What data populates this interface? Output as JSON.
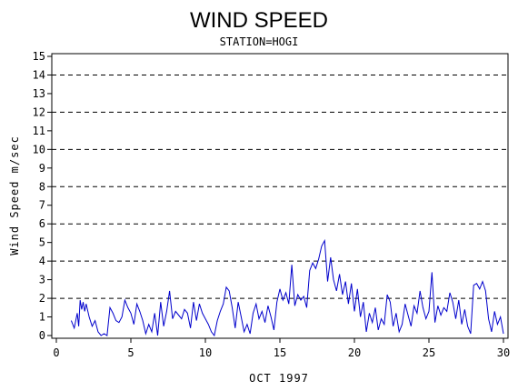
{
  "chart_data": {
    "type": "line",
    "title": "WIND SPEED",
    "subtitle": "STATION=HOGI",
    "xlabel": "OCT 1997",
    "ylabel": "Wind Speed m/sec",
    "xlim": [
      0,
      30
    ],
    "ylim": [
      0,
      15
    ],
    "x_ticks": [
      0,
      5,
      10,
      15,
      20,
      25,
      30
    ],
    "y_ticks": [
      0,
      1,
      2,
      3,
      4,
      5,
      6,
      7,
      8,
      9,
      10,
      11,
      12,
      13,
      14,
      15
    ],
    "gridlines_y": [
      2,
      4,
      6,
      8,
      10,
      12,
      14
    ],
    "grid_style": "dashed",
    "line_color": "#0000cc",
    "series": [
      {
        "x": [
          1.0,
          1.2,
          1.4,
          1.5,
          1.6,
          1.7,
          1.8,
          1.9,
          2.0,
          2.2,
          2.4,
          2.6,
          2.8,
          3.0,
          3.2,
          3.4,
          3.6,
          3.8,
          4.0,
          4.2,
          4.4,
          4.6,
          4.8,
          5.0,
          5.2,
          5.4,
          5.6,
          5.8,
          6.0,
          6.2,
          6.4,
          6.6,
          6.8,
          7.0,
          7.2,
          7.4,
          7.6,
          7.8,
          8.0,
          8.2,
          8.4,
          8.6,
          8.8,
          9.0,
          9.2,
          9.4,
          9.6,
          9.8,
          10.0,
          10.2,
          10.4,
          10.6,
          10.8,
          11.0,
          11.2,
          11.4,
          11.6,
          11.8,
          12.0,
          12.2,
          12.4,
          12.6,
          12.8,
          13.0,
          13.2,
          13.4,
          13.6,
          13.8,
          14.0,
          14.2,
          14.4,
          14.6,
          14.8,
          15.0,
          15.2,
          15.4,
          15.6,
          15.8,
          16.0,
          16.2,
          16.4,
          16.6,
          16.8,
          17.0,
          17.2,
          17.4,
          17.6,
          17.8,
          18.0,
          18.2,
          18.4,
          18.6,
          18.8,
          19.0,
          19.2,
          19.4,
          19.6,
          19.8,
          20.0,
          20.2,
          20.4,
          20.6,
          20.8,
          21.0,
          21.2,
          21.4,
          21.6,
          21.8,
          22.0,
          22.2,
          22.4,
          22.6,
          22.8,
          23.0,
          23.2,
          23.4,
          23.6,
          23.8,
          24.0,
          24.2,
          24.4,
          24.6,
          24.8,
          25.0,
          25.2,
          25.4,
          25.6,
          25.8,
          26.0,
          26.2,
          26.4,
          26.6,
          26.8,
          27.0,
          27.2,
          27.4,
          27.6,
          27.8,
          28.0,
          28.2,
          28.4,
          28.6,
          28.8,
          29.0,
          29.2,
          29.4,
          29.6,
          29.8,
          30.0
        ],
        "values": [
          0.8,
          0.4,
          1.2,
          0.5,
          1.9,
          1.4,
          1.8,
          1.3,
          1.7,
          1.0,
          0.5,
          0.8,
          0.2,
          0.0,
          0.1,
          0.0,
          1.5,
          1.2,
          0.8,
          0.7,
          1.0,
          1.9,
          1.5,
          1.2,
          0.6,
          1.7,
          1.3,
          0.8,
          0.1,
          0.6,
          0.2,
          1.2,
          0.0,
          1.8,
          0.5,
          1.3,
          2.4,
          0.9,
          1.3,
          1.1,
          0.9,
          1.4,
          1.2,
          0.4,
          1.8,
          0.8,
          1.7,
          1.2,
          0.9,
          0.6,
          0.2,
          0.0,
          0.8,
          1.3,
          1.7,
          2.6,
          2.4,
          1.5,
          0.4,
          1.8,
          1.0,
          0.2,
          0.6,
          0.1,
          1.2,
          1.7,
          0.9,
          1.3,
          0.7,
          1.6,
          1.0,
          0.3,
          1.8,
          2.5,
          1.9,
          2.3,
          1.7,
          3.8,
          1.6,
          2.2,
          1.9,
          2.1,
          1.5,
          3.5,
          3.9,
          3.6,
          4.1,
          4.8,
          5.1,
          2.9,
          4.2,
          3.0,
          2.4,
          3.3,
          2.2,
          2.9,
          1.7,
          2.8,
          1.3,
          2.5,
          1.0,
          1.8,
          0.2,
          1.2,
          0.7,
          1.5,
          0.3,
          0.9,
          0.6,
          2.2,
          1.8,
          0.5,
          1.2,
          0.2,
          0.6,
          1.7,
          1.1,
          0.5,
          1.6,
          1.2,
          2.4,
          1.5,
          0.9,
          1.3,
          3.4,
          0.7,
          1.6,
          1.1,
          1.5,
          1.3,
          2.3,
          1.8,
          0.9,
          1.9,
          0.6,
          1.4,
          0.5,
          0.1,
          2.7,
          2.8,
          2.5,
          2.9,
          2.4,
          0.9,
          0.2,
          1.3,
          0.6,
          1.0,
          0.1
        ]
      }
    ]
  }
}
